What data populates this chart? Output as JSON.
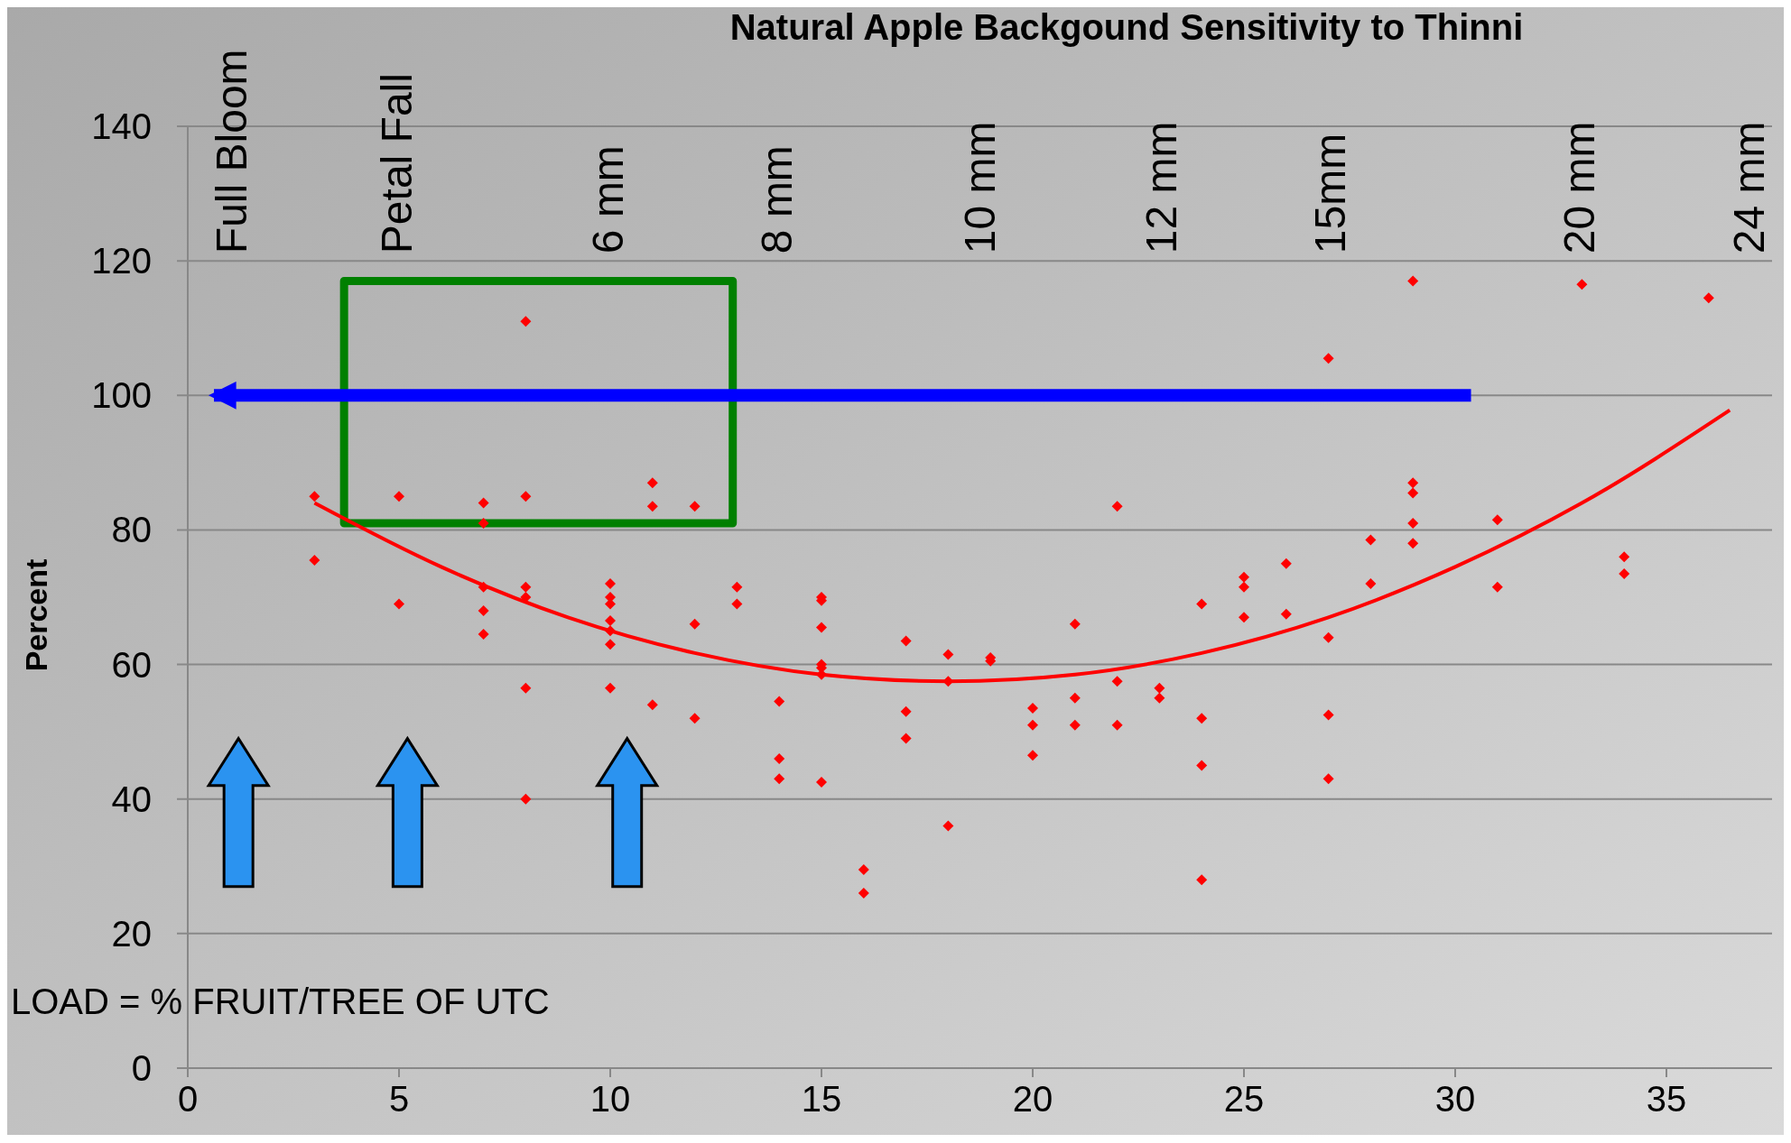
{
  "chart_data": {
    "type": "scatter",
    "title": "Natural Apple Backgound Sensitivity to Thinni",
    "ylabel": "Percent",
    "grid": "y",
    "xlim": [
      0,
      37.5
    ],
    "xticks": [
      0,
      5,
      10,
      15,
      20,
      25,
      30,
      35
    ],
    "ylim": [
      0,
      140
    ],
    "yticks": [
      0,
      20,
      40,
      60,
      80,
      100,
      120,
      140
    ],
    "series": [
      {
        "marker": "diamond",
        "color": "#ff0000",
        "x": [
          3,
          3,
          5,
          5,
          7,
          7,
          7,
          7,
          7,
          8,
          8,
          8,
          8,
          8,
          8,
          10,
          10,
          10,
          10,
          10,
          10,
          10,
          11,
          11,
          11,
          12,
          12,
          12,
          13,
          13,
          14,
          14,
          14,
          15,
          15,
          15,
          15,
          15,
          15,
          15,
          16,
          16,
          17,
          17,
          17,
          18,
          18,
          18,
          19,
          19,
          20,
          20,
          20,
          21,
          21,
          21,
          22,
          22,
          22,
          23,
          23,
          24,
          24,
          24,
          24,
          25,
          25,
          25,
          26,
          26,
          27,
          27,
          27,
          27,
          28,
          28,
          29,
          29,
          29,
          29,
          29,
          31,
          31,
          33,
          34,
          34,
          36
        ],
        "values": [
          85,
          75.5,
          85,
          69,
          84,
          81,
          71.5,
          68,
          64.5,
          111,
          85,
          71.5,
          70,
          56.5,
          40,
          72,
          70,
          69,
          66.5,
          65,
          63,
          56.5,
          87,
          83.5,
          54,
          83.5,
          66,
          52,
          71.5,
          69,
          54.5,
          46,
          43,
          70,
          69.5,
          65.5,
          60,
          59.5,
          58.5,
          42.5,
          29.5,
          26,
          63.5,
          53,
          49,
          61.5,
          57.5,
          36,
          61,
          60.5,
          53.5,
          51,
          46.5,
          66,
          55,
          51,
          83.5,
          57.5,
          51,
          56.5,
          55,
          69,
          52,
          45,
          28,
          73,
          71.5,
          67,
          75,
          67.5,
          105.5,
          64,
          52.5,
          43,
          78.5,
          72,
          117,
          87,
          85.5,
          81,
          78,
          81.5,
          71.5,
          116.5,
          76,
          73.5,
          114.5
        ]
      },
      {
        "type": "line",
        "color": "#ff0000",
        "x": [
          3,
          6,
          9,
          12,
          15,
          18,
          21,
          24,
          27,
          30,
          33,
          36.5
        ],
        "values": [
          84,
          74.5,
          67,
          61.7,
          58.5,
          57.5,
          58.5,
          61.7,
          67,
          74.5,
          84,
          97.8
        ]
      }
    ],
    "ref_lines": [
      {
        "axis": "y",
        "value": 100,
        "color": "#0000ff"
      }
    ],
    "annotations": [
      "Full Bloom",
      "Petal Fall",
      "6 mm",
      "8 mm",
      "10 mm",
      "12 mm",
      "15mm",
      "20 mm",
      "24 mm",
      "LOAD = % FRUIT/TREE OF UTC"
    ]
  }
}
